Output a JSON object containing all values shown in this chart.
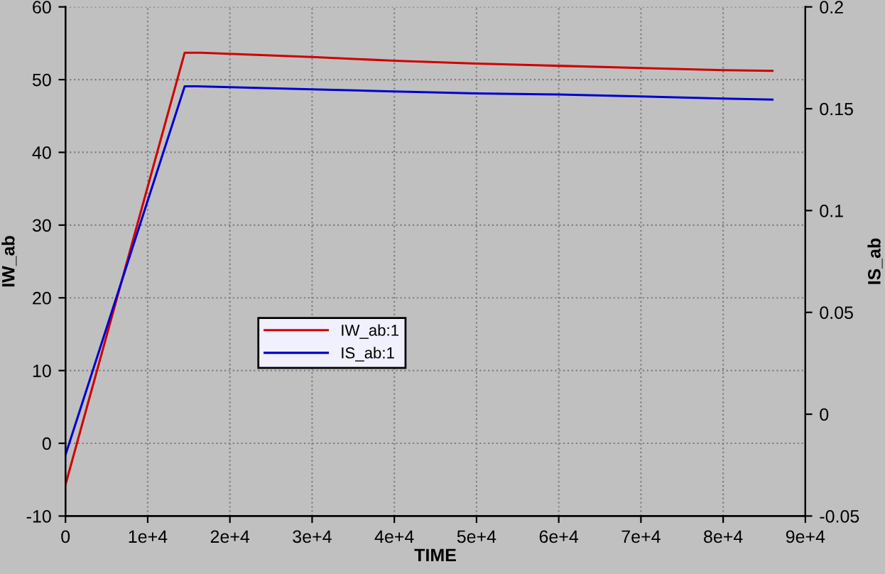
{
  "chart_data": {
    "type": "line",
    "xlabel": "TIME",
    "ylabel": "IW_ab",
    "y2label": "IS_ab",
    "xlim": [
      0,
      90000
    ],
    "xticks": [
      {
        "value": 0,
        "label": "0"
      },
      {
        "value": 10000,
        "label": "1e+4"
      },
      {
        "value": 20000,
        "label": "2e+4"
      },
      {
        "value": 30000,
        "label": "3e+4"
      },
      {
        "value": 40000,
        "label": "4e+4"
      },
      {
        "value": 50000,
        "label": "5e+4"
      },
      {
        "value": 60000,
        "label": "6e+4"
      },
      {
        "value": 70000,
        "label": "7e+4"
      },
      {
        "value": 80000,
        "label": "8e+4"
      },
      {
        "value": 90000,
        "label": "9e+4"
      }
    ],
    "ylim": [
      -10,
      60
    ],
    "yticks": [
      -10,
      0,
      10,
      20,
      30,
      40,
      50,
      60
    ],
    "y2lim": [
      -0.05,
      0.2
    ],
    "y2ticks": [
      -0.05,
      0,
      0.05,
      0.1,
      0.15,
      0.2
    ],
    "grid": true,
    "legend": "center left",
    "line_style": "solid",
    "series": [
      {
        "name": "IW_ab:1",
        "color": "#d00000",
        "x": [
          0,
          14500,
          16500,
          30000,
          40000,
          50000,
          60000,
          70000,
          80000,
          86000
        ],
        "values": [
          -5.7,
          53.7,
          53.7,
          53.1,
          52.6,
          52.2,
          51.9,
          51.6,
          51.3,
          51.2
        ]
      },
      {
        "name": "IS_ab:1",
        "color": "#0000d0",
        "axis": "y2",
        "x": [
          0,
          14500,
          16000,
          30000,
          40000,
          50000,
          60000,
          70000,
          80000,
          86000
        ],
        "values": [
          -0.02,
          0.161,
          0.161,
          0.1595,
          0.1585,
          0.1575,
          0.157,
          0.156,
          0.155,
          0.1545
        ]
      }
    ]
  }
}
